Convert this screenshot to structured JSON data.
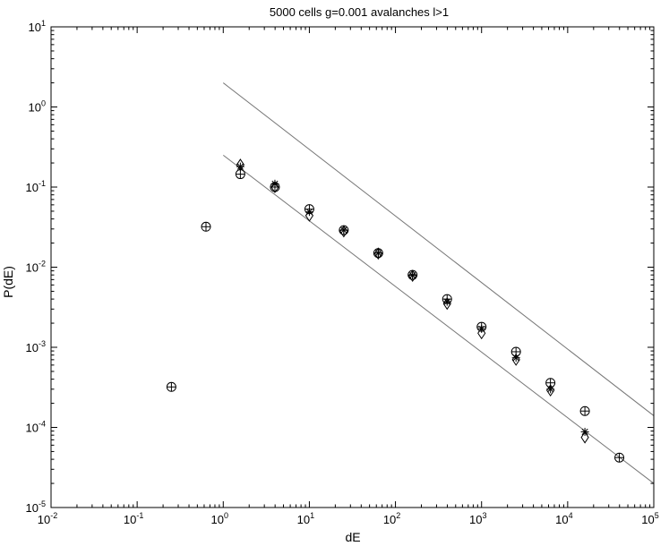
{
  "chart_data": {
    "type": "scatter",
    "title": "5000 cells g=0.001 avalanches l>1",
    "xlabel": "dE",
    "ylabel": "P(dE)",
    "x_scale": "log",
    "y_scale": "log",
    "xlim": [
      0.01,
      100000
    ],
    "ylim": [
      1e-05,
      10
    ],
    "grid": false,
    "x_ticks": [
      {
        "value": 0.01,
        "base": "10",
        "exp": "-2"
      },
      {
        "value": 0.1,
        "base": "10",
        "exp": "-1"
      },
      {
        "value": 1,
        "base": "10",
        "exp": "0"
      },
      {
        "value": 10,
        "base": "10",
        "exp": "1"
      },
      {
        "value": 100,
        "base": "10",
        "exp": "2"
      },
      {
        "value": 1000,
        "base": "10",
        "exp": "3"
      },
      {
        "value": 10000,
        "base": "10",
        "exp": "4"
      },
      {
        "value": 100000,
        "base": "10",
        "exp": "5"
      }
    ],
    "y_ticks": [
      {
        "value": 1e-05,
        "base": "10",
        "exp": "-5"
      },
      {
        "value": 0.0001,
        "base": "10",
        "exp": "-4"
      },
      {
        "value": 0.001,
        "base": "10",
        "exp": "-3"
      },
      {
        "value": 0.01,
        "base": "10",
        "exp": "-2"
      },
      {
        "value": 0.1,
        "base": "10",
        "exp": "-1"
      },
      {
        "value": 1,
        "base": "10",
        "exp": "0"
      },
      {
        "value": 10,
        "base": "10",
        "exp": "1"
      }
    ],
    "series": [
      {
        "marker": "circle-plus",
        "x": [
          0.25,
          0.63,
          1.58,
          3.98,
          10,
          25.1,
          63.1,
          158,
          398,
          1000,
          2512,
          6310,
          15850,
          39810
        ],
        "y": [
          0.00032,
          0.032,
          0.145,
          0.1,
          0.053,
          0.029,
          0.015,
          0.008,
          0.004,
          0.0018,
          0.00088,
          0.00036,
          0.00016,
          4.2e-05
        ]
      },
      {
        "marker": "asterisk",
        "x": [
          1.58,
          3.98,
          10,
          25.1,
          63.1,
          158,
          398,
          1000,
          2512,
          6310,
          15850
        ],
        "y": [
          0.18,
          0.11,
          0.049,
          0.029,
          0.015,
          0.0079,
          0.0037,
          0.0017,
          0.00074,
          0.0003,
          8.8e-05
        ]
      },
      {
        "marker": "diamond",
        "x": [
          1.58,
          3.98,
          10,
          25.1,
          63.1,
          158,
          398,
          1000,
          2512,
          6310,
          15850
        ],
        "y": [
          0.19,
          0.1,
          0.044,
          0.028,
          0.0148,
          0.0078,
          0.0035,
          0.0015,
          0.0007,
          0.00029,
          7.5e-05
        ]
      }
    ],
    "fit_lines": [
      {
        "x": [
          1,
          100000
        ],
        "y": [
          2,
          0.00014
        ]
      },
      {
        "x": [
          1,
          100000
        ],
        "y": [
          0.25,
          2e-05
        ]
      }
    ]
  }
}
